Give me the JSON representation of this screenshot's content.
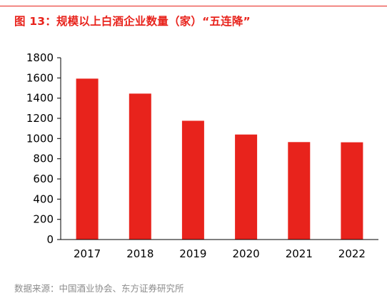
{
  "figure": {
    "title": "图 13：规模以上白酒企业数量（家）“五连降”",
    "source": "数据来源：中国酒业协会、东方证券研究所"
  },
  "colors": {
    "accent": "#e8231c",
    "bar": "#e8231c",
    "axis": "#000000",
    "source_text": "#8c8c8c"
  },
  "chart_data": {
    "type": "bar",
    "title": "",
    "xlabel": "",
    "ylabel": "",
    "categories": [
      "2017",
      "2018",
      "2019",
      "2020",
      "2021",
      "2022"
    ],
    "values": [
      1593,
      1445,
      1176,
      1040,
      965,
      963
    ],
    "ylim": [
      0,
      1800
    ],
    "yticks": [
      0,
      200,
      400,
      600,
      800,
      1000,
      1200,
      1400,
      1600,
      1800
    ],
    "grid": false,
    "legend": "none",
    "data_labels": false
  }
}
